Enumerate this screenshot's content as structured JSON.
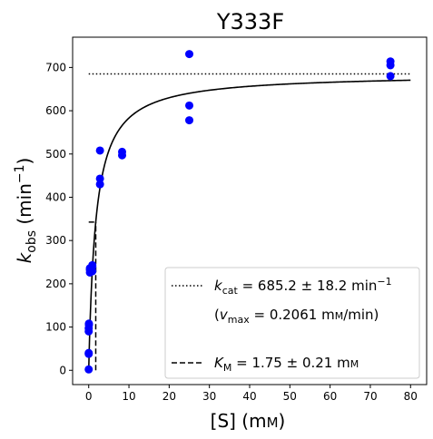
{
  "chart_data": {
    "type": "scatter",
    "title": "Y333F",
    "xlabel": {
      "main": "[S] (m",
      "unit_sc": "M",
      "close": ")"
    },
    "ylabel": {
      "k": "k",
      "sub": "obs",
      "unit": " (min",
      "sup": "−1",
      "close": ")"
    },
    "xlim": [
      -4,
      84
    ],
    "ylim": [
      -33,
      770
    ],
    "xticks": [
      0,
      10,
      20,
      30,
      40,
      50,
      60,
      70,
      80
    ],
    "yticks": [
      0,
      100,
      200,
      300,
      400,
      500,
      600,
      700
    ],
    "grid": false,
    "legend_position": "lower-right",
    "points": {
      "color": "#0000ff",
      "x": [
        0,
        0,
        0,
        0,
        0,
        0.05,
        0.05,
        0.3,
        0.3,
        0.3,
        0.9,
        0.9,
        0.9,
        2.8,
        2.8,
        2.8,
        8.3,
        8.3,
        25,
        25,
        25,
        75,
        75,
        75
      ],
      "y": [
        2,
        38,
        40,
        90,
        97,
        105,
        108,
        226,
        232,
        236,
        229,
        240,
        243,
        430,
        443,
        508,
        497,
        505,
        578,
        612,
        731,
        680,
        705,
        714
      ]
    },
    "fit": {
      "model": "michaelis-menten",
      "kcat": 685.2,
      "km": 1.75,
      "x_range": [
        0,
        80
      ]
    },
    "kcat_line": {
      "y": 685.2,
      "x_range": [
        0,
        80
      ],
      "style": "dotted"
    },
    "km_line": {
      "x": 1.75,
      "y_top": 342.6,
      "style": "dashed"
    },
    "legend": {
      "kcat": {
        "k": "k",
        "sub": "cat",
        "text": " = 685.2 ± 18.2 min",
        "sup": "−1"
      },
      "vmax": {
        "open": "(",
        "v": "v",
        "sub": "max",
        "text": " = 0.2061 m",
        "unit_sc": "M",
        "close": "/min)"
      },
      "km": {
        "k": "K",
        "sub": "M",
        "text": " = 1.75 ± 0.21 m",
        "unit_sc": "M"
      }
    }
  }
}
